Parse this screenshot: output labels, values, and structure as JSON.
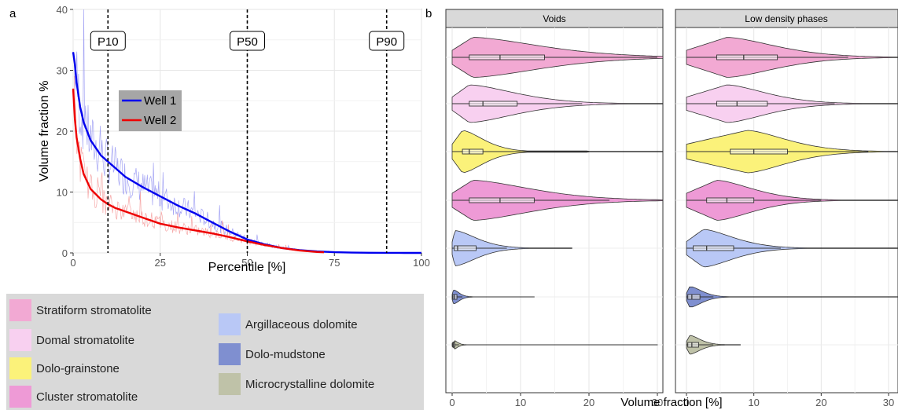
{
  "panel_labels": {
    "a": "a",
    "b": "b"
  },
  "colors": {
    "well1": "#0000ee",
    "well1_raw": "#9b9bf3",
    "well2": "#ee0000",
    "well2_raw": "#f5a0a0",
    "legend_bg": "#d9d9d9",
    "facet_strip": "#d9d9d9"
  },
  "chart_data": [
    {
      "type": "line",
      "xlabel": "Percentile [%]",
      "ylabel": "Volume fraction %",
      "xlim": [
        0,
        100
      ],
      "ylim": [
        0,
        40
      ],
      "xticks": [
        "0",
        "25",
        "50",
        "75",
        "100"
      ],
      "yticks": [
        "0",
        "10",
        "20",
        "30",
        "40"
      ],
      "grid": true,
      "reference_lines": [
        {
          "x": 10,
          "label": "P10"
        },
        {
          "x": 50,
          "label": "P50"
        },
        {
          "x": 90,
          "label": "P90"
        }
      ],
      "legend_position": "center-left",
      "series": [
        {
          "name": "Well 1",
          "x": [
            0,
            0.5,
            1,
            2,
            3,
            5,
            8,
            10,
            12,
            15,
            20,
            25,
            30,
            35,
            40,
            45,
            50,
            55,
            60,
            65,
            70,
            75,
            80,
            85,
            90,
            95,
            100
          ],
          "y": [
            33,
            31,
            28,
            24,
            21.5,
            18.5,
            16,
            15,
            14,
            12.5,
            10.8,
            9.3,
            7.8,
            6.5,
            5.0,
            3.5,
            2.2,
            1.4,
            0.8,
            0.45,
            0.25,
            0.12,
            0.05,
            0.02,
            0.01,
            0,
            0
          ]
        },
        {
          "name": "Well 2",
          "x": [
            0,
            0.5,
            1,
            2,
            3,
            5,
            8,
            10,
            12,
            15,
            20,
            25,
            30,
            35,
            40,
            45,
            50,
            55,
            60,
            65,
            70,
            72
          ],
          "y": [
            27,
            22,
            19,
            15.5,
            13,
            10.5,
            8.8,
            8,
            7.4,
            6.8,
            5.8,
            4.8,
            4.2,
            3.7,
            3.2,
            2.6,
            1.9,
            1.3,
            0.8,
            0.4,
            0.15,
            0.1
          ]
        }
      ]
    },
    {
      "type": "violin",
      "xlabel": "Volume fraction [%]",
      "xlim": [
        0,
        32
      ],
      "xticks": [
        "0",
        "10",
        "20",
        "30"
      ],
      "grid": true,
      "facets": [
        "Voids",
        "Low density phases"
      ],
      "categories": [
        "Stratiform stromatolite",
        "Domal stromatolite",
        "Dolo-grainstone",
        "Cluster stromatolite",
        "Argillaceous dolomite",
        "Dolo-mudstone",
        "Microcrystalline dolomite"
      ],
      "category_colors": [
        "#f2a9d3",
        "#f8d0f0",
        "#fbf27a",
        "#ee9ad6",
        "#b9c8f6",
        "#7f8fd0",
        "#bfc2a8"
      ],
      "legend_position": "bottom-left",
      "panels": [
        {
          "facet": "Voids",
          "groups": [
            {
              "q1": 2.5,
              "median": 7,
              "q3": 13.5,
              "whisker_max": 30,
              "max": 32,
              "width": 0.85,
              "mode": 3
            },
            {
              "q1": 2.5,
              "median": 4.5,
              "q3": 9.5,
              "whisker_max": 19,
              "max": 32,
              "width": 0.8,
              "mode": 2.5
            },
            {
              "q1": 1.5,
              "median": 2.5,
              "q3": 4.5,
              "whisker_max": 20,
              "max": 32,
              "width": 0.9,
              "mode": 1.5
            },
            {
              "q1": 2.5,
              "median": 7,
              "q3": 12,
              "whisker_max": 23,
              "max": 32,
              "width": 0.85,
              "mode": 3
            },
            {
              "q1": 0.3,
              "median": 0.8,
              "q3": 3.5,
              "whisker_max": 8,
              "max": 17.5,
              "width": 0.75,
              "mode": 0.4
            },
            {
              "q1": 0.1,
              "median": 0.3,
              "q3": 0.7,
              "whisker_max": 1.5,
              "max": 12,
              "width": 0.3,
              "mode": 0.2
            },
            {
              "q1": 0.1,
              "median": 0.2,
              "q3": 0.4,
              "whisker_max": 1,
              "max": 30,
              "width": 0.2,
              "mode": 0.2
            }
          ]
        },
        {
          "facet": "Low density phases",
          "groups": [
            {
              "q1": 4.5,
              "median": 8.5,
              "q3": 13.5,
              "whisker_max": 24,
              "max": 32,
              "width": 0.85,
              "mode": 6
            },
            {
              "q1": 4.5,
              "median": 7.5,
              "q3": 12,
              "whisker_max": 22,
              "max": 32,
              "width": 0.8,
              "mode": 6
            },
            {
              "q1": 6.5,
              "median": 10,
              "q3": 15,
              "whisker_max": 27,
              "max": 32,
              "width": 0.9,
              "mode": 9
            },
            {
              "q1": 3,
              "median": 6,
              "q3": 10,
              "whisker_max": 20,
              "max": 32,
              "width": 0.85,
              "mode": 4.5
            },
            {
              "q1": 1,
              "median": 3,
              "q3": 7,
              "whisker_max": 14,
              "max": 32,
              "width": 0.8,
              "mode": 2.5
            },
            {
              "q1": 0.2,
              "median": 0.8,
              "q3": 2,
              "whisker_max": 4,
              "max": 32,
              "width": 0.45,
              "mode": 0.5
            },
            {
              "q1": 0.2,
              "median": 0.8,
              "q3": 1.8,
              "whisker_max": 4,
              "max": 8,
              "width": 0.4,
              "mode": 0.5
            }
          ]
        }
      ]
    }
  ],
  "legend": {
    "items": [
      {
        "label": "Stratiform stromatolite",
        "color": "#f2a9d3"
      },
      {
        "label": "Domal stromatolite",
        "color": "#f8d0f0"
      },
      {
        "label": "Dolo-grainstone",
        "color": "#fbf27a"
      },
      {
        "label": "Cluster stromatolite",
        "color": "#ee9ad6"
      },
      {
        "label": "Argillaceous dolomite",
        "color": "#b9c8f6"
      },
      {
        "label": "Dolo-mudstone",
        "color": "#7f8fd0"
      },
      {
        "label": "Microcrystalline dolomite",
        "color": "#bfc2a8"
      }
    ]
  }
}
